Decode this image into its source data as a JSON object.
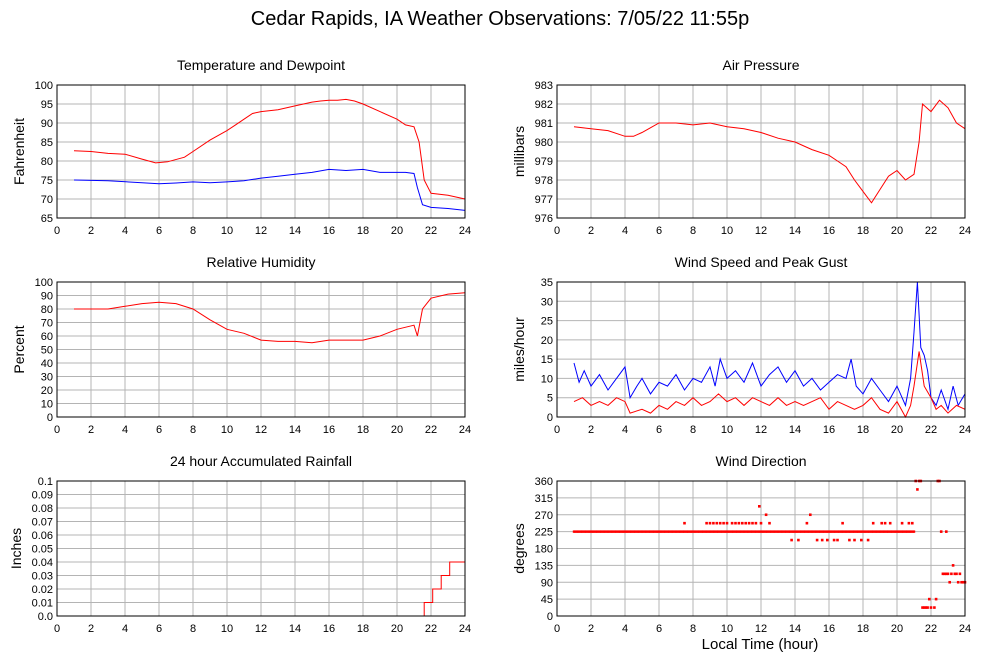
{
  "title": "Cedar Rapids, IA Weather Observations: 7/05/22 11:55p",
  "xlabel": "Local Time (hour)",
  "colors": {
    "red": "#ff0000",
    "blue": "#0000ff",
    "grid": "#b4b4b4",
    "frame": "#000000"
  },
  "chart_data": [
    {
      "type": "line",
      "title": "Temperature and Dewpoint",
      "ylabel": "Fahrenheit",
      "xlim": [
        0,
        24
      ],
      "ylim": [
        65,
        100
      ],
      "xticks": [
        0,
        2,
        4,
        6,
        8,
        10,
        12,
        14,
        16,
        18,
        20,
        22,
        24
      ],
      "yticks": [
        65,
        70,
        75,
        80,
        85,
        90,
        95,
        100
      ],
      "grid": true,
      "series": [
        {
          "color": "#ff0000",
          "x": [
            1.0,
            2.0,
            3.0,
            4.0,
            5.0,
            5.8,
            6.5,
            7.5,
            8.0,
            9.0,
            10.0,
            10.5,
            11.0,
            11.5,
            12.0,
            13.0,
            14.0,
            15.0,
            15.5,
            16.0,
            16.5,
            17.0,
            17.5,
            18.0,
            19.0,
            20.0,
            20.5,
            21.0,
            21.3,
            21.6,
            22.0,
            23.0,
            24.0
          ],
          "y": [
            82.7,
            82.5,
            82.0,
            81.8,
            80.5,
            79.5,
            79.8,
            81.0,
            82.5,
            85.5,
            88.0,
            89.5,
            91.0,
            92.5,
            93.0,
            93.5,
            94.5,
            95.5,
            95.8,
            96.0,
            96.0,
            96.2,
            95.8,
            95.0,
            93.0,
            91.0,
            89.5,
            89.0,
            85.0,
            75.0,
            71.5,
            71.0,
            70.0
          ]
        },
        {
          "color": "#0000ff",
          "x": [
            1.0,
            3.0,
            5.0,
            6.0,
            7.0,
            8.0,
            9.0,
            10.0,
            11.0,
            12.0,
            13.0,
            14.0,
            15.0,
            16.0,
            17.0,
            18.0,
            19.0,
            20.0,
            20.5,
            21.0,
            21.2,
            21.5,
            22.0,
            23.0,
            24.0
          ],
          "y": [
            75.0,
            74.8,
            74.3,
            74.0,
            74.2,
            74.5,
            74.3,
            74.5,
            74.8,
            75.5,
            76.0,
            76.5,
            77.0,
            77.8,
            77.5,
            77.8,
            77.0,
            77.0,
            77.0,
            76.7,
            73.0,
            68.5,
            67.8,
            67.5,
            67.0
          ]
        }
      ]
    },
    {
      "type": "line",
      "title": "Air Pressure",
      "ylabel": "millibars",
      "xlim": [
        0,
        24
      ],
      "ylim": [
        976,
        983
      ],
      "xticks": [
        0,
        2,
        4,
        6,
        8,
        10,
        12,
        14,
        16,
        18,
        20,
        22,
        24
      ],
      "yticks": [
        976,
        977,
        978,
        979,
        980,
        981,
        982,
        983
      ],
      "grid": true,
      "series": [
        {
          "color": "#ff0000",
          "x": [
            1.0,
            2.0,
            3.0,
            4.0,
            4.5,
            5.0,
            6.0,
            7.0,
            8.0,
            9.0,
            10.0,
            11.0,
            12.0,
            13.0,
            14.0,
            15.0,
            16.0,
            16.5,
            17.0,
            17.5,
            18.0,
            18.5,
            19.0,
            19.5,
            20.0,
            20.5,
            21.0,
            21.3,
            21.5,
            22.0,
            22.5,
            23.0,
            23.5,
            24.0
          ],
          "y": [
            980.8,
            980.7,
            980.6,
            980.3,
            980.3,
            980.5,
            981.0,
            981.0,
            980.9,
            981.0,
            980.8,
            980.7,
            980.5,
            980.2,
            980.0,
            979.6,
            979.3,
            979.0,
            978.7,
            978.0,
            977.4,
            976.8,
            977.5,
            978.2,
            978.5,
            978.0,
            978.3,
            980.0,
            982.0,
            981.6,
            982.2,
            981.8,
            981.0,
            980.7
          ]
        }
      ]
    },
    {
      "type": "line",
      "title": "Relative Humidity",
      "ylabel": "Percent",
      "xlim": [
        0,
        24
      ],
      "ylim": [
        0,
        100
      ],
      "xticks": [
        0,
        2,
        4,
        6,
        8,
        10,
        12,
        14,
        16,
        18,
        20,
        22,
        24
      ],
      "yticks": [
        0,
        10,
        20,
        30,
        40,
        50,
        60,
        70,
        80,
        90,
        100
      ],
      "grid": true,
      "series": [
        {
          "color": "#ff0000",
          "x": [
            1.0,
            2.0,
            3.0,
            4.0,
            5.0,
            6.0,
            7.0,
            8.0,
            9.0,
            10.0,
            11.0,
            12.0,
            13.0,
            14.0,
            15.0,
            16.0,
            17.0,
            18.0,
            19.0,
            20.0,
            21.0,
            21.2,
            21.5,
            22.0,
            23.0,
            24.0
          ],
          "y": [
            80,
            80,
            80,
            82,
            84,
            85,
            84,
            80,
            72,
            65,
            62,
            57,
            56,
            56,
            55,
            57,
            57,
            57,
            60,
            65,
            68,
            60,
            80,
            88,
            91,
            92
          ]
        }
      ]
    },
    {
      "type": "line",
      "title": "Wind Speed and Peak Gust",
      "ylabel": "miles/hour",
      "xlim": [
        0,
        24
      ],
      "ylim": [
        0,
        35
      ],
      "xticks": [
        0,
        2,
        4,
        6,
        8,
        10,
        12,
        14,
        16,
        18,
        20,
        22,
        24
      ],
      "yticks": [
        0,
        5,
        10,
        15,
        20,
        25,
        30,
        35
      ],
      "grid": true,
      "series": [
        {
          "color": "#0000ff",
          "x": [
            1.0,
            1.3,
            1.6,
            2.0,
            2.5,
            3.0,
            3.5,
            4.0,
            4.3,
            4.7,
            5.0,
            5.5,
            6.0,
            6.5,
            7.0,
            7.5,
            8.0,
            8.5,
            9.0,
            9.3,
            9.6,
            10.0,
            10.5,
            11.0,
            11.5,
            12.0,
            12.5,
            13.0,
            13.5,
            14.0,
            14.5,
            15.0,
            15.5,
            16.0,
            16.5,
            17.0,
            17.3,
            17.6,
            18.0,
            18.5,
            19.0,
            19.5,
            20.0,
            20.5,
            20.8,
            21.0,
            21.2,
            21.4,
            21.6,
            21.8,
            22.0,
            22.3,
            22.6,
            23.0,
            23.3,
            23.6,
            24.0
          ],
          "y": [
            14,
            9,
            12,
            8,
            11,
            7,
            10,
            13,
            5,
            8,
            10,
            6,
            9,
            8,
            11,
            7,
            10,
            9,
            13,
            8,
            15,
            10,
            12,
            9,
            14,
            8,
            11,
            13,
            9,
            12,
            8,
            10,
            7,
            9,
            11,
            10,
            15,
            8,
            6,
            10,
            7,
            4,
            8,
            3,
            10,
            22,
            35,
            18,
            16,
            12,
            5,
            3,
            7,
            2,
            8,
            3,
            6
          ]
        },
        {
          "color": "#ff0000",
          "x": [
            1.0,
            1.5,
            2.0,
            2.5,
            3.0,
            3.5,
            4.0,
            4.3,
            5.0,
            5.5,
            6.0,
            6.5,
            7.0,
            7.5,
            8.0,
            8.5,
            9.0,
            9.5,
            10.0,
            10.5,
            11.0,
            11.5,
            12.0,
            12.5,
            13.0,
            13.5,
            14.0,
            14.5,
            15.0,
            15.5,
            16.0,
            16.5,
            17.0,
            17.5,
            18.0,
            18.5,
            19.0,
            19.5,
            20.0,
            20.5,
            20.8,
            21.0,
            21.3,
            21.6,
            22.0,
            22.3,
            22.6,
            23.0,
            23.5,
            24.0
          ],
          "y": [
            4,
            5,
            3,
            4,
            3,
            5,
            4,
            1,
            2,
            1,
            3,
            2,
            4,
            3,
            5,
            3,
            4,
            6,
            4,
            5,
            3,
            5,
            4,
            3,
            5,
            3,
            4,
            3,
            4,
            5,
            2,
            4,
            3,
            2,
            3,
            5,
            2,
            1,
            4,
            0,
            3,
            8,
            17,
            8,
            5,
            2,
            3,
            1,
            3,
            2
          ]
        }
      ]
    },
    {
      "type": "line",
      "title": "24 hour Accumulated Rainfall",
      "ylabel": "Inches",
      "xlim": [
        0,
        24
      ],
      "ylim": [
        0,
        0.1
      ],
      "xticks": [
        0,
        2,
        4,
        6,
        8,
        10,
        12,
        14,
        16,
        18,
        20,
        22,
        24
      ],
      "yticks": [
        "0.0",
        "0.01",
        "0.02",
        "0.03",
        "0.04",
        "0.05",
        "0.06",
        "0.07",
        "0.08",
        "0.09",
        "0.1"
      ],
      "grid": true,
      "series": [
        {
          "color": "#ff0000",
          "x": [
            1.0,
            21.6,
            21.6,
            22.1,
            22.1,
            22.6,
            22.6,
            22.7,
            22.7,
            23.1,
            23.1,
            24.0
          ],
          "y": [
            0,
            0,
            0.01,
            0.01,
            0.02,
            0.02,
            0.03,
            0.03,
            0.03,
            0.03,
            0.04,
            0.04
          ]
        }
      ]
    },
    {
      "type": "scatter",
      "title": "Wind Direction",
      "ylabel": "degrees",
      "xlim": [
        0,
        24
      ],
      "ylim": [
        0,
        360
      ],
      "xticks": [
        0,
        2,
        4,
        6,
        8,
        10,
        12,
        14,
        16,
        18,
        20,
        22,
        24
      ],
      "yticks": [
        0,
        45,
        90,
        135,
        180,
        225,
        270,
        315,
        360
      ],
      "grid": true,
      "series": [
        {
          "color": "#ff0000",
          "segments": [
            {
              "from": 1.0,
              "to": 21.0,
              "y": 225
            }
          ],
          "x": [
            7.5,
            8.8,
            9.0,
            9.2,
            9.4,
            9.6,
            9.8,
            10.0,
            10.3,
            10.5,
            10.7,
            10.9,
            11.1,
            11.3,
            11.5,
            11.7,
            11.9,
            12.0,
            12.3,
            12.5,
            13.8,
            14.2,
            14.7,
            14.9,
            15.3,
            15.6,
            15.9,
            16.3,
            16.5,
            16.8,
            17.2,
            17.5,
            17.9,
            18.3,
            18.6,
            19.1,
            19.3,
            19.6,
            20.3,
            20.7,
            20.9,
            21.1,
            21.2,
            21.3,
            21.4,
            21.5,
            21.6,
            21.7,
            21.8,
            21.9,
            22.0,
            22.2,
            22.3,
            22.4,
            22.6,
            22.7,
            22.8,
            22.9,
            23.0,
            23.1,
            23.2,
            23.3,
            23.4,
            23.5,
            23.6,
            23.7,
            23.8,
            23.9,
            24.0,
            22.5,
            22.9
          ],
          "y": [
            247.5,
            247.5,
            247.5,
            247.5,
            247.5,
            247.5,
            247.5,
            247.5,
            247.5,
            247.5,
            247.5,
            247.5,
            247.5,
            247.5,
            247.5,
            247.5,
            292.5,
            247.5,
            270,
            247.5,
            202.5,
            202.5,
            247.5,
            270,
            202.5,
            202.5,
            202.5,
            202.5,
            202.5,
            247.5,
            202.5,
            202.5,
            202.5,
            202.5,
            247.5,
            247.5,
            247.5,
            247.5,
            247.5,
            247.5,
            247.5,
            360,
            337.5,
            360,
            360,
            22.5,
            22.5,
            22.5,
            22.5,
            45,
            22.5,
            22.5,
            45,
            360,
            225,
            112.5,
            112.5,
            112.5,
            112.5,
            90,
            112.5,
            135,
            112.5,
            112.5,
            90,
            112.5,
            90,
            90,
            90,
            360,
            225
          ]
        }
      ]
    }
  ]
}
